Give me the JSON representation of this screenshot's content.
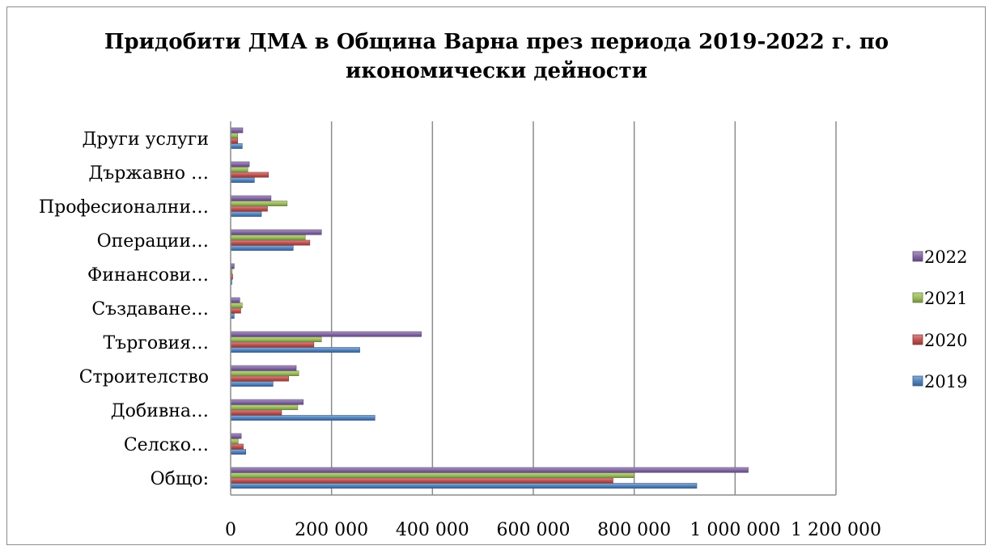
{
  "chart_data": {
    "type": "bar",
    "orientation": "horizontal",
    "title_line1": "Придобити ДМА в Община Варна през периода 2019-2022 г. по",
    "title_line2": "икономически дейности",
    "categories": [
      "Общо:",
      "Селско…",
      "Добивна…",
      "Строителство",
      "Търговия…",
      "Създаване…",
      "Финансови…",
      "Операции…",
      "Професионални…",
      "Държавно …",
      "Други услуги"
    ],
    "series": [
      {
        "name": "2019",
        "color": "#4f81bd",
        "values": [
          924000,
          30000,
          286000,
          84000,
          256000,
          7000,
          2000,
          124000,
          61000,
          47000,
          23000
        ]
      },
      {
        "name": "2020",
        "color": "#c0504d",
        "values": [
          758000,
          25000,
          101000,
          115000,
          165000,
          20000,
          4000,
          157000,
          73000,
          75000,
          14000
        ]
      },
      {
        "name": "2021",
        "color": "#9bbb59",
        "values": [
          800000,
          15000,
          133000,
          135000,
          180000,
          23000,
          3000,
          148000,
          112000,
          34000,
          14000
        ]
      },
      {
        "name": "2022",
        "color": "#8064a2",
        "values": [
          1026000,
          21000,
          144000,
          130000,
          378000,
          18000,
          7000,
          180000,
          80000,
          37000,
          24000
        ]
      }
    ],
    "xlim": [
      0,
      1200000
    ],
    "xticks": [
      0,
      200000,
      400000,
      600000,
      800000,
      1000000,
      1200000
    ],
    "xtick_labels": [
      "0",
      "200 000",
      "400 000",
      "600 000",
      "800 000",
      "1 000 000",
      "1 200 000"
    ],
    "grid": "vertical",
    "legend_position": "right"
  }
}
